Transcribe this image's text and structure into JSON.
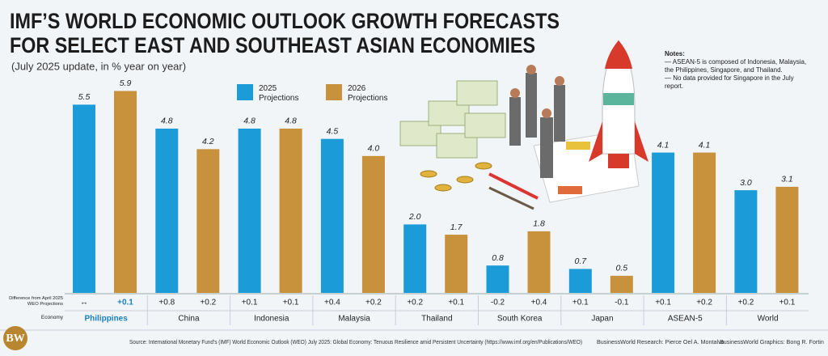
{
  "chart_data": {
    "type": "bar",
    "title": [
      "IMF’S WORLD ECONOMIC OUTLOOK GROWTH FORECASTS",
      "FOR SELECT EAST AND SOUTHEAST ASIAN ECONOMIES"
    ],
    "subtitle": "(July 2025 update, in % year on year)",
    "categories": [
      "Philippines",
      "China",
      "Indonesia",
      "Malaysia",
      "Thailand",
      "South Korea",
      "Japan",
      "ASEAN-5",
      "World"
    ],
    "series": [
      {
        "name": "2025 Projections",
        "color": "#1b9bd8",
        "values": [
          5.5,
          4.8,
          4.8,
          4.5,
          2.0,
          0.8,
          0.7,
          4.1,
          3.0
        ],
        "value_labels": [
          "5.5",
          "4.8",
          "4.8",
          "4.5",
          "2.0",
          "0.8",
          "0.7",
          "4.1",
          "3.0"
        ],
        "differences": [
          "↔",
          "+0.8",
          "+0.1",
          "+0.4",
          "+0.2",
          "-0.2",
          "+0.1",
          "+0.1",
          "+0.2"
        ]
      },
      {
        "name": "2026 Projections",
        "color": "#c8923c",
        "values": [
          5.9,
          4.2,
          4.8,
          4.0,
          1.7,
          1.8,
          0.5,
          4.1,
          3.1
        ],
        "value_labels": [
          "5.9",
          "4.2",
          "4.8",
          "4.0",
          "1.7",
          "1.8",
          "0.5",
          "4.1",
          "3.1"
        ],
        "differences": [
          "+0.1",
          "+0.2",
          "+0.1",
          "+0.2",
          "+0.1",
          "+0.4",
          "-0.1",
          "+0.2",
          "+0.1"
        ]
      }
    ],
    "row_labels": {
      "difference": "Difference from April 2025 WEO Projections",
      "economy": "Economy"
    },
    "notes": [
      "Notes:",
      "— ASEAN-5 is composed of Indonesia, Malaysia, the Philippines, Singapore, and Thailand.",
      "— No data provided for Singapore in the July report."
    ],
    "source": "Source: International Monetary Fund’s (IMF) World Economic Outlook (WEO) July 2025: Global Economy: Tenuous Resilience amid Persistent Uncertainty (https://www.imf.org/en/Publications/WEO)",
    "research": "BusinessWorld Research: Pierce Oel A. Montalvo",
    "graphics": "BusinessWorld Graphics: Bong R. Fortin",
    "logo": "BW"
  }
}
